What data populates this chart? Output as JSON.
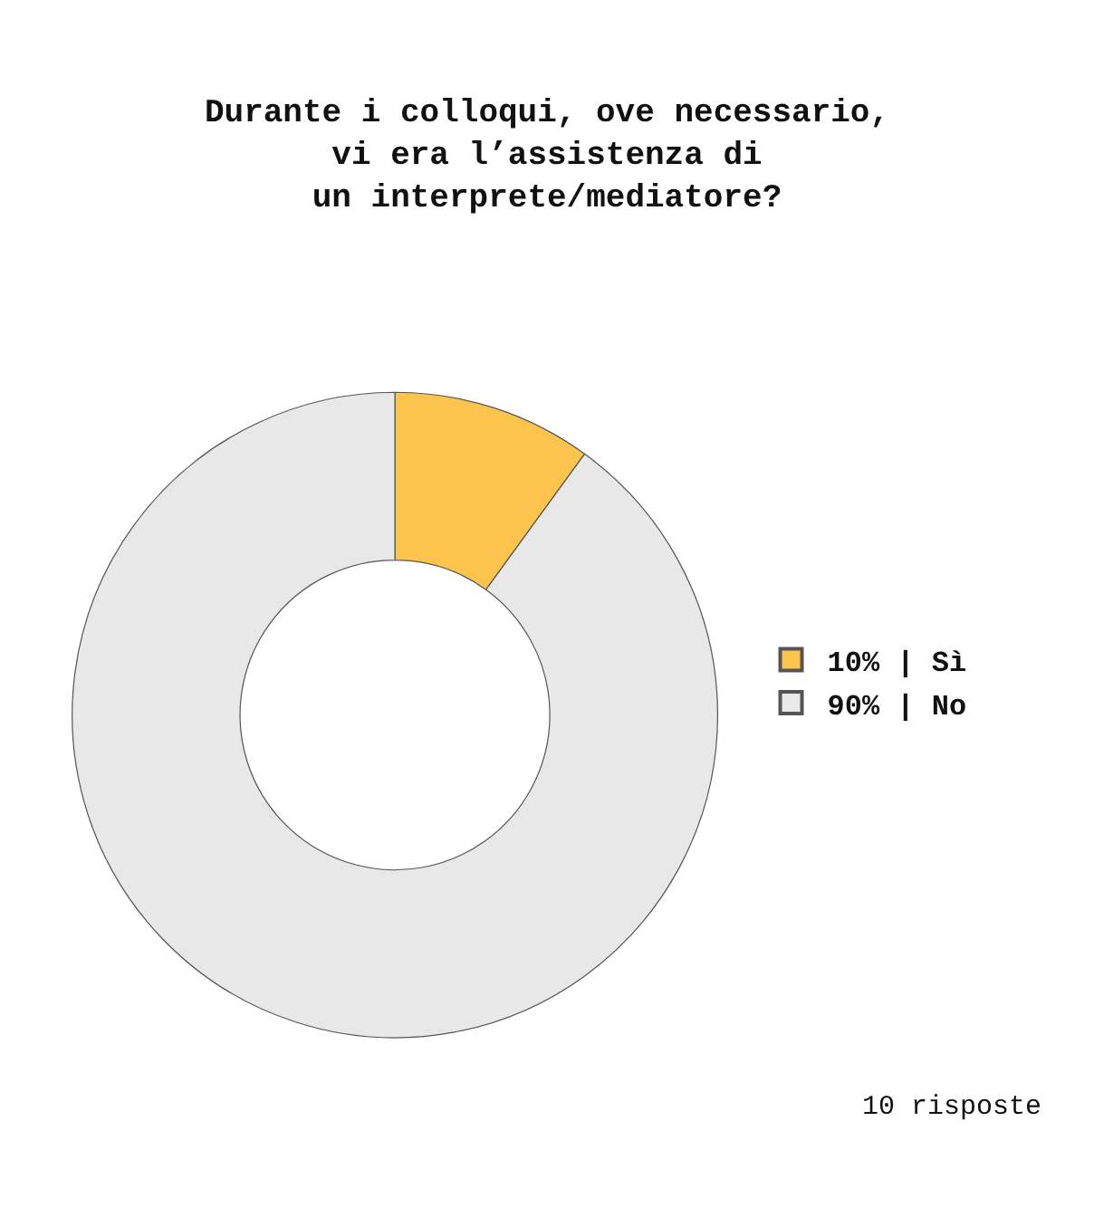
{
  "chart_data": {
    "type": "donut",
    "title": "Durante i colloqui, ove necessario,\nvi era l’assistenza di\nun interprete/mediatore?",
    "categories": [
      "10% | Sì",
      "90% | No"
    ],
    "values": [
      10,
      90
    ],
    "colors": [
      "#fcc44c",
      "#e8e8e8"
    ],
    "legend": "right",
    "annotations": [
      "10 risposte"
    ]
  }
}
